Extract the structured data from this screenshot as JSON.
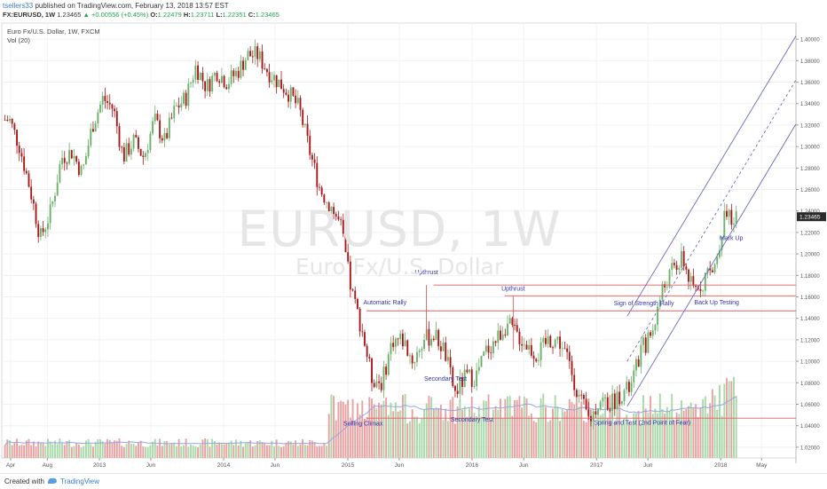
{
  "header": {
    "author": "tsellers33",
    "published_text": "published on TradingView.com, February 13, 2018 13:57 EST",
    "symbol": "FX:EURUSD, 1W",
    "last": "1.23465",
    "change": "▲ +0.00556 (+0.45%)",
    "open_label": "O:",
    "open": "1.22479",
    "high_label": "H:",
    "high": "1.23711",
    "low_label": "L:",
    "low": "1.22351",
    "close_label": "C:",
    "close": "1.23465"
  },
  "legend": {
    "instrument": "Euro Fx/U.S. Dollar, 1W, FXCM",
    "volume": "Vol (20)"
  },
  "watermark": {
    "symbol": "EURUSD, 1W",
    "name": "Euro Fx/U.S. Dollar"
  },
  "footer": {
    "created_with": "Created with",
    "brand": "TradingView"
  },
  "colors": {
    "up": "#6ab26a",
    "down": "#a81818",
    "vol_up": "#a8d8a8",
    "vol_down": "#e8a0a0",
    "annot": "#3333aa",
    "hline": "#d96060",
    "channel": "#6a6ac0",
    "price_badge": "#2b2b2b",
    "vol_ma": "#8fa8e0"
  },
  "chart_data": {
    "type": "candlestick",
    "title": "Euro Fx/U.S. Dollar, 1W, FXCM",
    "x_labels": [
      "Apr",
      "Aug",
      "2013",
      "Jun",
      "2014",
      "Jun",
      "2015",
      "Jun",
      "2016",
      "Jun",
      "2017",
      "Jun",
      "2018",
      "May"
    ],
    "y_ticks": [
      "1.40000",
      "1.38000",
      "1.36000",
      "1.34000",
      "1.32000",
      "1.30000",
      "1.28000",
      "1.26000",
      "1.24000",
      "1.22000",
      "1.20000",
      "1.18000",
      "1.16000",
      "1.14000",
      "1.12000",
      "1.10000",
      "1.08000",
      "1.06000",
      "1.04000",
      "1.02000"
    ],
    "ylim": [
      1.01,
      1.415
    ],
    "last_price": "1.23465",
    "price_path": [
      [
        "2012-04",
        1.325
      ],
      [
        "2012-05",
        1.3
      ],
      [
        "2012-06",
        1.26
      ],
      [
        "2012-07",
        1.215
      ],
      [
        "2012-08",
        1.24
      ],
      [
        "2012-09",
        1.29
      ],
      [
        "2012-10",
        1.295
      ],
      [
        "2012-11",
        1.275
      ],
      [
        "2012-12",
        1.32
      ],
      [
        "2013-01",
        1.345
      ],
      [
        "2013-02",
        1.335
      ],
      [
        "2013-03",
        1.29
      ],
      [
        "2013-04",
        1.305
      ],
      [
        "2013-05",
        1.29
      ],
      [
        "2013-06",
        1.325
      ],
      [
        "2013-07",
        1.305
      ],
      [
        "2013-08",
        1.335
      ],
      [
        "2013-09",
        1.345
      ],
      [
        "2013-10",
        1.375
      ],
      [
        "2013-11",
        1.355
      ],
      [
        "2013-12",
        1.37
      ],
      [
        "2014-01",
        1.36
      ],
      [
        "2014-02",
        1.37
      ],
      [
        "2014-03",
        1.385
      ],
      [
        "2014-04",
        1.385
      ],
      [
        "2014-05",
        1.37
      ],
      [
        "2014-06",
        1.36
      ],
      [
        "2014-07",
        1.35
      ],
      [
        "2014-08",
        1.335
      ],
      [
        "2014-09",
        1.295
      ],
      [
        "2014-10",
        1.26
      ],
      [
        "2014-11",
        1.245
      ],
      [
        "2014-12",
        1.225
      ],
      [
        "2015-01",
        1.165
      ],
      [
        "2015-02",
        1.13
      ],
      [
        "2015-03",
        1.085
      ],
      [
        "2015-04",
        1.08
      ],
      [
        "2015-05",
        1.12
      ],
      [
        "2015-06",
        1.12
      ],
      [
        "2015-07",
        1.1
      ],
      [
        "2015-08",
        1.12
      ],
      [
        "2015-09",
        1.125
      ],
      [
        "2015-10",
        1.11
      ],
      [
        "2015-11",
        1.07
      ],
      [
        "2015-12",
        1.085
      ],
      [
        "2016-01",
        1.085
      ],
      [
        "2016-02",
        1.11
      ],
      [
        "2016-03",
        1.12
      ],
      [
        "2016-04",
        1.135
      ],
      [
        "2016-05",
        1.125
      ],
      [
        "2016-06",
        1.115
      ],
      [
        "2016-07",
        1.105
      ],
      [
        "2016-08",
        1.12
      ],
      [
        "2016-09",
        1.12
      ],
      [
        "2016-10",
        1.1
      ],
      [
        "2016-11",
        1.065
      ],
      [
        "2016-12",
        1.045
      ],
      [
        "2017-01",
        1.065
      ],
      [
        "2017-02",
        1.06
      ],
      [
        "2017-03",
        1.07
      ],
      [
        "2017-04",
        1.075
      ],
      [
        "2017-05",
        1.11
      ],
      [
        "2017-06",
        1.125
      ],
      [
        "2017-07",
        1.165
      ],
      [
        "2017-08",
        1.185
      ],
      [
        "2017-09",
        1.195
      ],
      [
        "2017-10",
        1.165
      ],
      [
        "2017-11",
        1.175
      ],
      [
        "2017-12",
        1.185
      ],
      [
        "2018-01",
        1.235
      ],
      [
        "2018-02",
        1.235
      ]
    ],
    "horizontal_levels": [
      1.171,
      1.161,
      1.147,
      1.047
    ],
    "annotations": [
      "Upthrust",
      "Automatic Rally",
      "Upthrust",
      "Sign of Strength Rally",
      "Back Up Testing",
      "Mark Up",
      "Secondary Test",
      "Selling Climax",
      "Secondary Test",
      "Spring and Test (2nd Point of Fear)"
    ]
  }
}
